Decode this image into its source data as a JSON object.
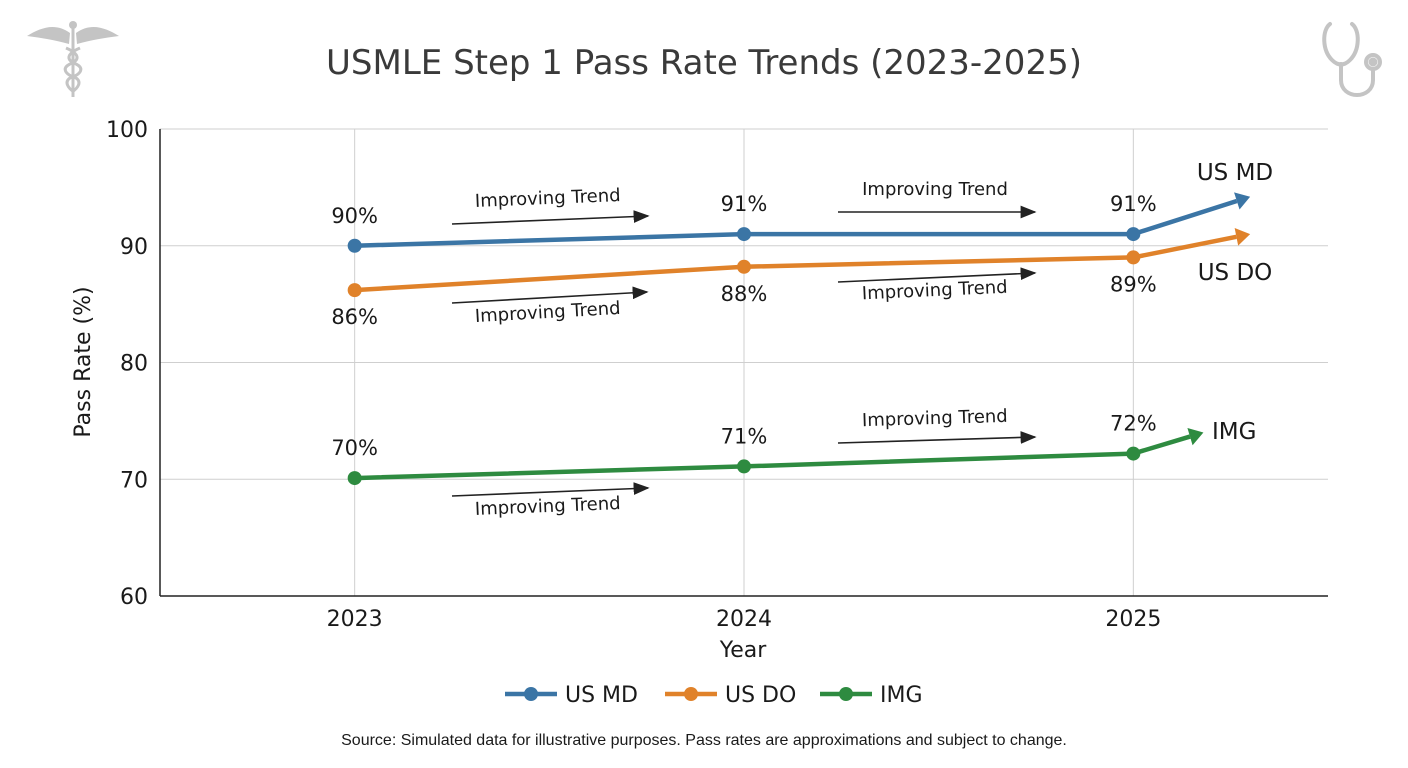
{
  "chart_data": {
    "type": "line",
    "title": "USMLE Step 1 Pass Rate Trends (2023-2025)",
    "xlabel": "Year",
    "ylabel": "Pass Rate (%)",
    "categories": [
      "2023",
      "2024",
      "2025"
    ],
    "x": [
      2023,
      2024,
      2025
    ],
    "xlim": [
      2022.5,
      2025.5
    ],
    "ylim": [
      60,
      100
    ],
    "yticks": [
      60,
      70,
      80,
      90,
      100
    ],
    "grid": true,
    "legend_placement": "bottom-center",
    "series": [
      {
        "name": "US MD",
        "values": [
          90,
          91,
          91
        ],
        "labels": [
          "90%",
          "91%",
          "91%"
        ],
        "color": "#3b75a5",
        "trend_end": 94.2
      },
      {
        "name": "US DO",
        "values": [
          86.2,
          88.2,
          89
        ],
        "labels": [
          "86%",
          "88%",
          "89%"
        ],
        "color": "#e0822a",
        "trend_end": 91
      },
      {
        "name": "IMG",
        "values": [
          70.1,
          71.1,
          72.2
        ],
        "labels": [
          "70%",
          "71%",
          "72%"
        ],
        "color": "#2e8b40",
        "trend_end": 74
      }
    ],
    "annotations": [
      "Improving Trend",
      "Improving Trend",
      "Improving Trend",
      "Improving Trend",
      "Improving Trend",
      "Improving Trend"
    ]
  },
  "source_note": "Source: Simulated data for illustrative purposes. Pass rates are approximations and subject to change.",
  "icons": [
    "caduceus-icon",
    "stethoscope-icon"
  ]
}
